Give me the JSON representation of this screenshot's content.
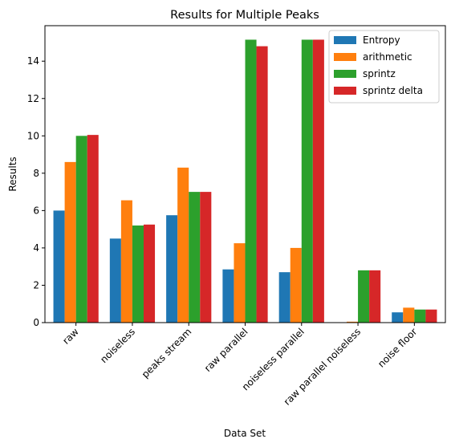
{
  "chart_data": {
    "type": "bar",
    "title": "Results for Multiple Peaks",
    "xlabel": "Data Set",
    "ylabel": "Results",
    "categories": [
      "raw",
      "noiseless",
      "peaks stream",
      "raw parallel",
      "noiseless parallel",
      "raw parallel noiseless",
      "noise floor"
    ],
    "series": [
      {
        "name": "Entropy",
        "color": "#1f77b4",
        "values": [
          6.0,
          4.5,
          5.75,
          2.85,
          2.7,
          0.0,
          0.55
        ]
      },
      {
        "name": "arithmetic",
        "color": "#ff7f0e",
        "values": [
          8.6,
          6.55,
          8.3,
          4.25,
          4.0,
          0.05,
          0.8
        ]
      },
      {
        "name": "sprintz",
        "color": "#2ca02c",
        "values": [
          10.0,
          5.2,
          7.0,
          15.15,
          15.15,
          2.8,
          0.7
        ]
      },
      {
        "name": "sprintz delta",
        "color": "#d62728",
        "values": [
          10.05,
          5.25,
          7.0,
          14.8,
          15.15,
          2.8,
          0.7
        ]
      }
    ],
    "ylim": [
      0,
      15.9
    ],
    "yticks": [
      0,
      2,
      4,
      6,
      8,
      10,
      12,
      14
    ],
    "grid": false,
    "legend_position": "top-right"
  }
}
